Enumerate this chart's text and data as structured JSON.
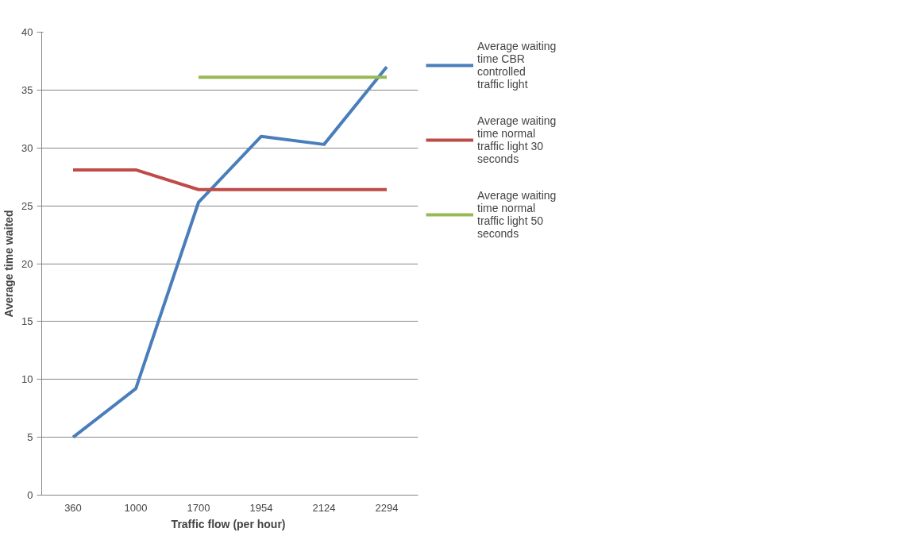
{
  "chart_data": {
    "type": "line",
    "xlabel": "Traffic flow  (per hour)",
    "ylabel": "Average time waited",
    "categories": [
      "360",
      "1000",
      "1700",
      "1954",
      "2124",
      "2294"
    ],
    "series": [
      {
        "name": "Average waiting time CBR controlled traffic light",
        "color": "#4a7ebb",
        "values": [
          5,
          9.2,
          25.3,
          31,
          30.3,
          37
        ]
      },
      {
        "name": "Average waiting time normal traffic light 30 seconds",
        "color": "#be4b48",
        "values": [
          28.1,
          28.1,
          26.4,
          26.4,
          26.4,
          26.4
        ]
      },
      {
        "name": "Average waiting time normal traffic light 50 seconds",
        "color": "#98b954",
        "values": [
          null,
          null,
          36.1,
          36.1,
          36.1,
          36.1
        ]
      }
    ],
    "ylim": [
      0,
      40
    ],
    "yticks": [
      0,
      5,
      10,
      15,
      20,
      25,
      30,
      35,
      40
    ],
    "grid": "y",
    "legend": "right",
    "marker": "none",
    "line_style": "solid"
  }
}
